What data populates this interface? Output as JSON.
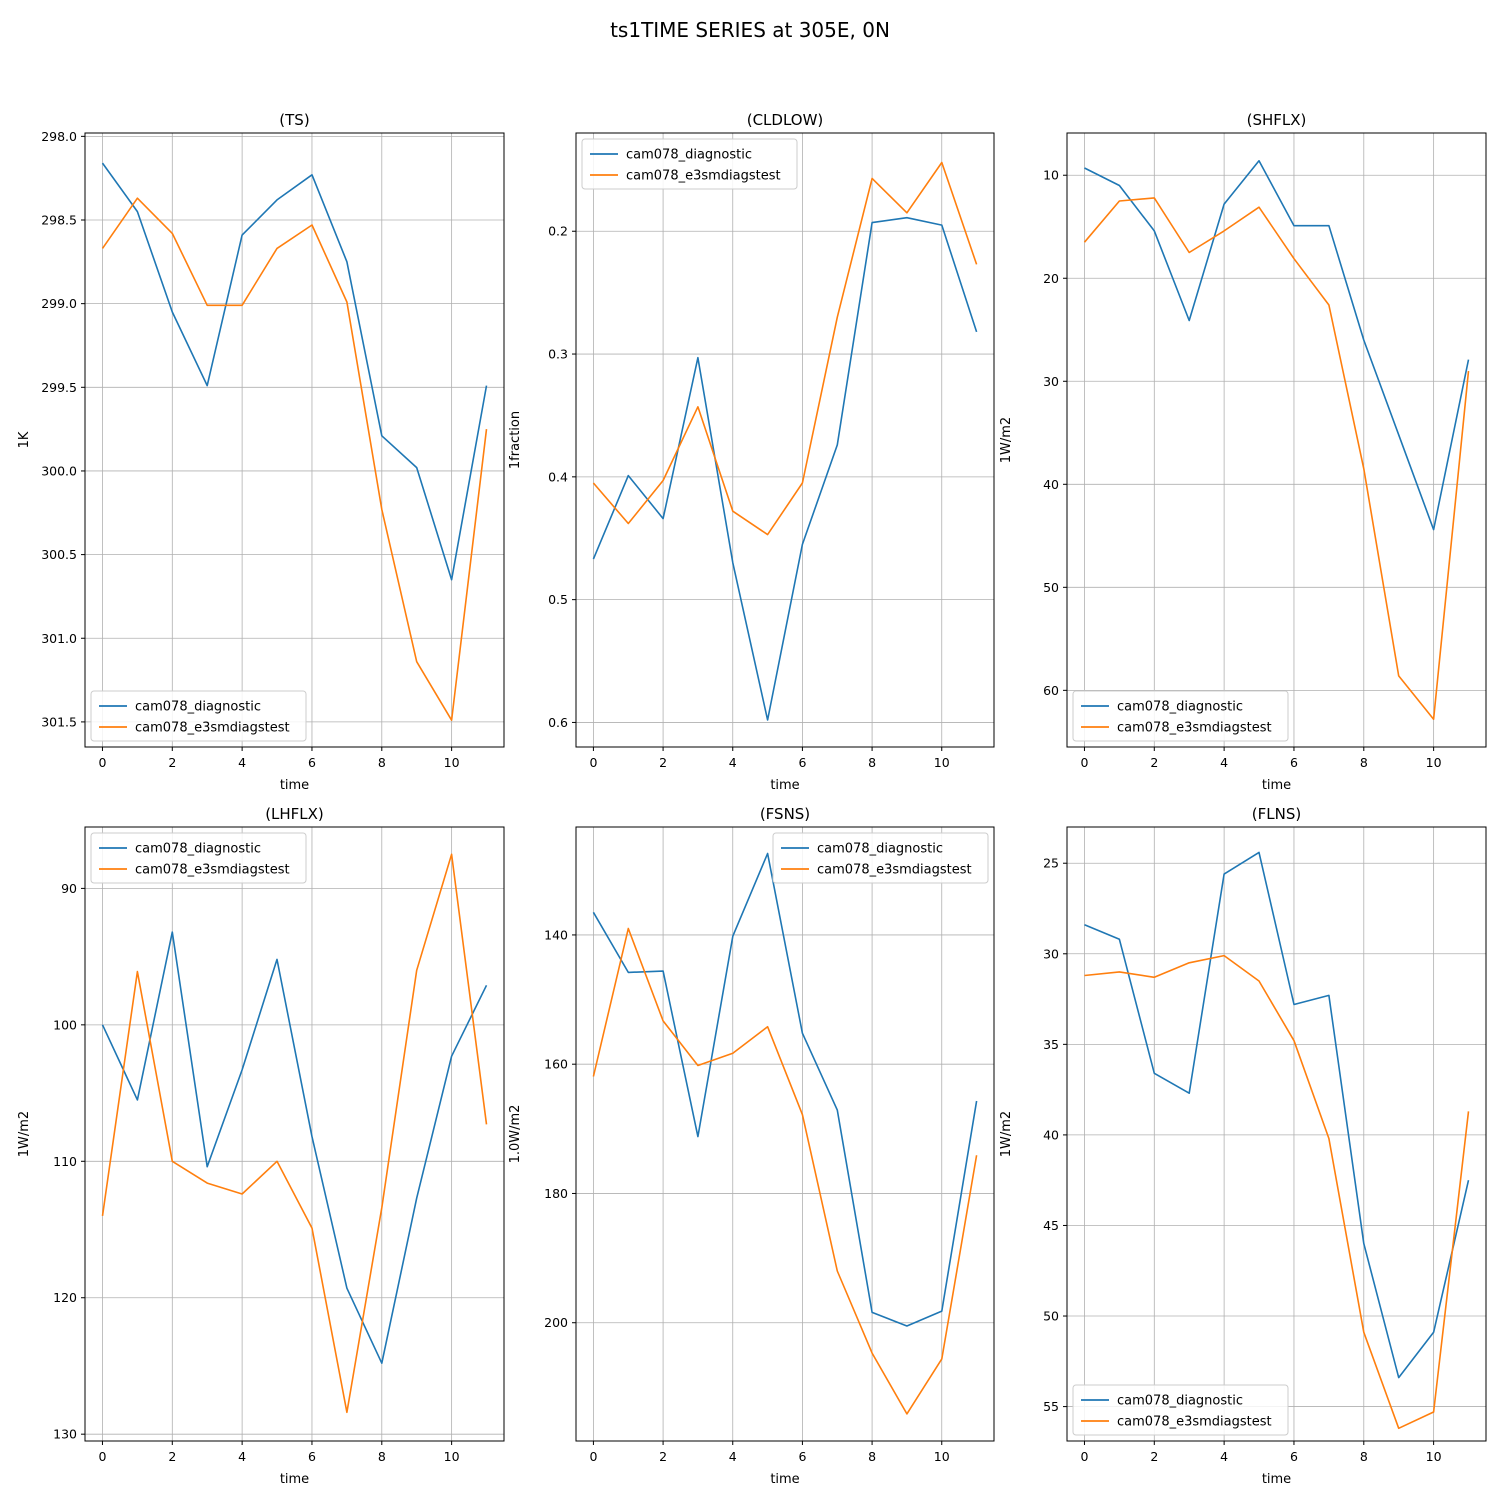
{
  "figure": {
    "title": "ts1TIME SERIES at 305E, 0N"
  },
  "colors": {
    "diag": "#1f77b4",
    "e3sm": "#ff7f0e",
    "grid": "#b0b0b0"
  },
  "legend": [
    "cam078_diagnostic",
    "cam078_e3smdiagstest"
  ],
  "chart_data": [
    {
      "type": "line",
      "title": "(TS)",
      "xlabel": "time",
      "ylabel": "1K",
      "xlim": [
        -0.5,
        11.5
      ],
      "ylim": [
        301.65,
        297.98
      ],
      "y_inverted": true,
      "xticks": [
        0,
        2,
        4,
        6,
        8,
        10
      ],
      "yticks": [
        298.0,
        298.5,
        299.0,
        299.5,
        300.0,
        300.5,
        301.0,
        301.5
      ],
      "ytick_labels": [
        "298.0",
        "298.5",
        "299.0",
        "299.5",
        "300.0",
        "300.5",
        "301.0",
        "301.5"
      ],
      "legend_position": "lower-left",
      "x": [
        0,
        1,
        2,
        3,
        4,
        5,
        6,
        7,
        8,
        9,
        10,
        11
      ],
      "series": [
        {
          "name": "cam078_diagnostic",
          "values": [
            298.16,
            298.45,
            299.05,
            299.49,
            298.59,
            298.38,
            298.23,
            298.75,
            299.79,
            299.98,
            300.65,
            299.49
          ]
        },
        {
          "name": "cam078_e3smdiagstest",
          "values": [
            298.67,
            298.37,
            298.58,
            299.01,
            299.01,
            298.67,
            298.53,
            298.99,
            300.23,
            301.14,
            301.49,
            299.75
          ]
        }
      ]
    },
    {
      "type": "line",
      "title": "(CLDLOW)",
      "xlabel": "time",
      "ylabel": "1fraction",
      "xlim": [
        -0.5,
        11.5
      ],
      "ylim": [
        0.62,
        0.12
      ],
      "y_inverted": true,
      "xticks": [
        0,
        2,
        4,
        6,
        8,
        10
      ],
      "yticks": [
        0.2,
        0.3,
        0.4,
        0.5,
        0.6
      ],
      "ytick_labels": [
        "0.2",
        "0.3",
        "0.4",
        "0.5",
        "0.6"
      ],
      "legend_position": "upper-left",
      "x": [
        0,
        1,
        2,
        3,
        4,
        5,
        6,
        7,
        8,
        9,
        10,
        11
      ],
      "series": [
        {
          "name": "cam078_diagnostic",
          "values": [
            0.467,
            0.399,
            0.434,
            0.303,
            0.47,
            0.598,
            0.455,
            0.374,
            0.193,
            0.189,
            0.195,
            0.282
          ]
        },
        {
          "name": "cam078_e3smdiagstest",
          "values": [
            0.405,
            0.438,
            0.403,
            0.343,
            0.428,
            0.447,
            0.405,
            0.27,
            0.157,
            0.185,
            0.144,
            0.227
          ]
        }
      ]
    },
    {
      "type": "line",
      "title": "(SHFLX)",
      "xlabel": "time",
      "ylabel": "1W/m2",
      "xlim": [
        -0.5,
        11.5
      ],
      "ylim": [
        65.5,
        5.9
      ],
      "y_inverted": true,
      "xticks": [
        0,
        2,
        4,
        6,
        8,
        10
      ],
      "yticks": [
        10,
        20,
        30,
        40,
        50,
        60
      ],
      "ytick_labels": [
        "10",
        "20",
        "30",
        "40",
        "50",
        "60"
      ],
      "legend_position": "lower-left",
      "x": [
        0,
        1,
        2,
        3,
        4,
        5,
        6,
        7,
        8,
        9,
        10,
        11
      ],
      "series": [
        {
          "name": "cam078_diagnostic",
          "values": [
            9.3,
            11.0,
            15.4,
            24.1,
            12.8,
            8.6,
            14.9,
            14.9,
            26.0,
            35.2,
            44.4,
            27.9
          ]
        },
        {
          "name": "cam078_e3smdiagstest",
          "values": [
            16.5,
            12.5,
            12.2,
            17.5,
            15.4,
            13.1,
            18.1,
            22.6,
            38.5,
            58.6,
            62.8,
            29.0
          ]
        }
      ]
    },
    {
      "type": "line",
      "title": "(LHFLX)",
      "xlabel": "time",
      "ylabel": "1W/m2",
      "xlim": [
        -0.5,
        11.5
      ],
      "ylim": [
        130.5,
        85.5
      ],
      "y_inverted": true,
      "xticks": [
        0,
        2,
        4,
        6,
        8,
        10
      ],
      "yticks": [
        90,
        100,
        110,
        120,
        130
      ],
      "ytick_labels": [
        "90",
        "100",
        "110",
        "120",
        "130"
      ],
      "legend_position": "upper-left",
      "x": [
        0,
        1,
        2,
        3,
        4,
        5,
        6,
        7,
        8,
        9,
        10,
        11
      ],
      "series": [
        {
          "name": "cam078_diagnostic",
          "values": [
            100.0,
            105.5,
            93.2,
            110.4,
            103.3,
            95.2,
            108.2,
            119.3,
            124.8,
            112.7,
            102.3,
            97.1
          ]
        },
        {
          "name": "cam078_e3smdiagstest",
          "values": [
            114.0,
            96.1,
            110.0,
            111.6,
            112.4,
            110.0,
            114.9,
            128.4,
            113.4,
            96.0,
            87.5,
            107.3
          ]
        }
      ]
    },
    {
      "type": "line",
      "title": "(FSNS)",
      "xlabel": "time",
      "ylabel": "1.0W/m2",
      "xlim": [
        -0.5,
        11.5
      ],
      "ylim": [
        218.3,
        123.3
      ],
      "y_inverted": true,
      "xticks": [
        0,
        2,
        4,
        6,
        8,
        10
      ],
      "yticks": [
        140,
        160,
        180,
        200
      ],
      "ytick_labels": [
        "140",
        "160",
        "180",
        "200"
      ],
      "legend_position": "upper-right",
      "x": [
        0,
        1,
        2,
        3,
        4,
        5,
        6,
        7,
        8,
        9,
        10,
        11
      ],
      "series": [
        {
          "name": "cam078_diagnostic",
          "values": [
            136.5,
            145.8,
            145.6,
            171.2,
            140.2,
            127.4,
            155.2,
            167.1,
            198.4,
            200.5,
            198.2,
            165.7
          ]
        },
        {
          "name": "cam078_e3smdiagstest",
          "values": [
            161.9,
            139.0,
            153.3,
            160.2,
            158.3,
            154.2,
            167.8,
            192.0,
            204.7,
            214.1,
            205.6,
            174.1
          ]
        }
      ]
    },
    {
      "type": "line",
      "title": "(FLNS)",
      "xlabel": "time",
      "ylabel": "1W/m2",
      "xlim": [
        -0.5,
        11.5
      ],
      "ylim": [
        56.9,
        23.0
      ],
      "y_inverted": true,
      "xticks": [
        0,
        2,
        4,
        6,
        8,
        10
      ],
      "yticks": [
        25,
        30,
        35,
        40,
        45,
        50,
        55
      ],
      "ytick_labels": [
        "25",
        "30",
        "35",
        "40",
        "45",
        "50",
        "55"
      ],
      "legend_position": "lower-left",
      "x": [
        0,
        1,
        2,
        3,
        4,
        5,
        6,
        7,
        8,
        9,
        10,
        11
      ],
      "series": [
        {
          "name": "cam078_diagnostic",
          "values": [
            28.4,
            29.2,
            36.6,
            37.7,
            25.6,
            24.4,
            32.8,
            32.3,
            46.0,
            53.4,
            50.9,
            42.5
          ]
        },
        {
          "name": "cam078_e3smdiagstest",
          "values": [
            31.2,
            31.0,
            31.3,
            30.5,
            30.1,
            31.5,
            34.8,
            40.2,
            50.9,
            56.2,
            55.3,
            38.7
          ]
        }
      ]
    }
  ]
}
